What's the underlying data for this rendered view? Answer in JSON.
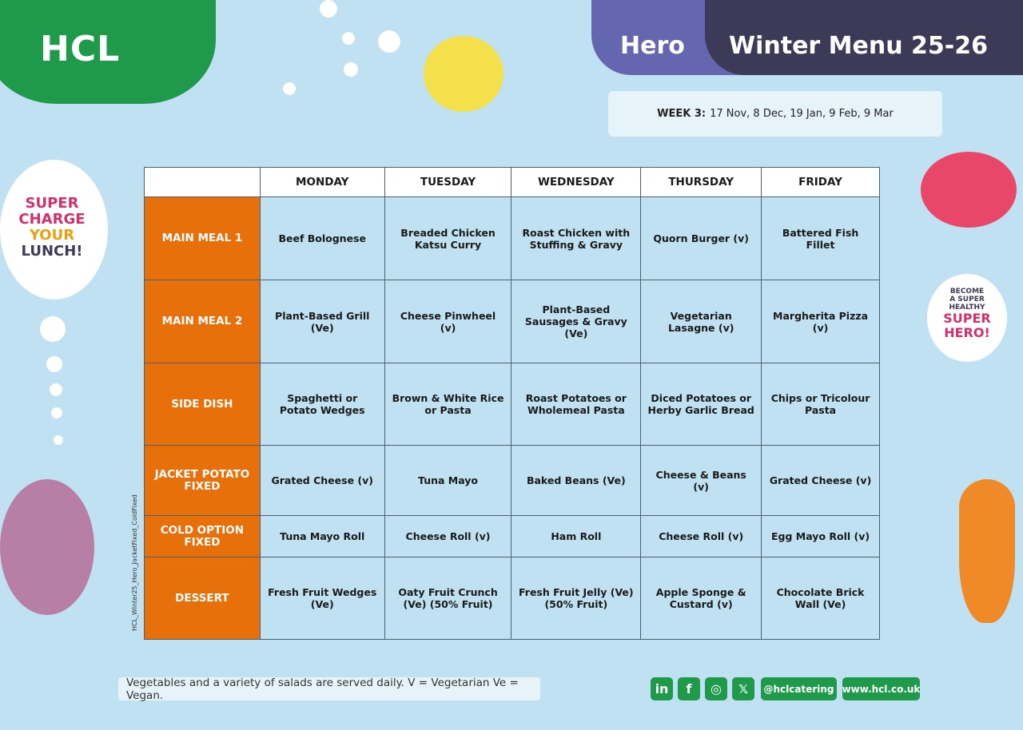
{
  "brand": {
    "logo": "HCL",
    "theme": "Hero",
    "title": "Winter Menu 25-26"
  },
  "week": {
    "label": "WEEK 3:",
    "dates": "17 Nov, 8 Dec, 19 Jan, 9 Feb, 9 Mar"
  },
  "left_cloud": [
    "SUPER",
    "CHARGE",
    "YOUR",
    "LUNCH!"
  ],
  "right_cloud": [
    "BECOME",
    "A SUPER",
    "HEALTHY",
    "SUPER",
    "HERO!"
  ],
  "doc_code": "HCL_Winter25_Hero_JacketFixed_ColdFixed",
  "menu": {
    "days": [
      "MONDAY",
      "TUESDAY",
      "WEDNESDAY",
      "THURSDAY",
      "FRIDAY"
    ],
    "rows": [
      {
        "label": "MAIN MEAL 1",
        "items": [
          "Beef Bolognese",
          "Breaded Chicken Katsu Curry",
          "Roast Chicken with Stuffing & Gravy",
          "Quorn Burger (v)",
          "Battered Fish Fillet"
        ]
      },
      {
        "label": "MAIN MEAL 2",
        "items": [
          "Plant-Based Grill (Ve)",
          "Cheese Pinwheel (v)",
          "Plant-Based Sausages & Gravy (Ve)",
          "Vegetarian Lasagne (v)",
          "Margherita Pizza (v)"
        ]
      },
      {
        "label": "SIDE DISH",
        "items": [
          "Spaghetti or Potato Wedges",
          "Brown & White Rice or Pasta",
          "Roast Potatoes or Wholemeal Pasta",
          "Diced Potatoes or Herby Garlic Bread",
          "Chips or Tricolour Pasta"
        ]
      },
      {
        "label": "JACKET POTATO FIXED",
        "items": [
          "Grated Cheese (v)",
          "Tuna Mayo",
          "Baked Beans (Ve)",
          "Cheese & Beans (v)",
          "Grated Cheese (v)"
        ]
      },
      {
        "label": "COLD OPTION FIXED",
        "items": [
          "Tuna Mayo Roll",
          "Cheese Roll (v)",
          "Ham Roll",
          "Cheese Roll (v)",
          "Egg Mayo Roll (v)"
        ]
      },
      {
        "label": "DESSERT",
        "items": [
          "Fresh Fruit Wedges (Ve)",
          "Oaty Fruit Crunch (Ve) (50% Fruit)",
          "Fresh Fruit Jelly (Ve) (50% Fruit)",
          "Apple Sponge & Custard (v)",
          "Chocolate Brick Wall (Ve)"
        ]
      }
    ]
  },
  "footer": {
    "note": "Vegetables and a variety of salads are served daily.  V = Vegetarian  Ve = Vegan.",
    "social_icons": [
      "linkedin-icon",
      "facebook-icon",
      "instagram-icon",
      "x-icon"
    ],
    "social": [
      "in",
      "f",
      "◎",
      "𝕏"
    ],
    "handle": "@hclcatering",
    "website": "www.hcl.co.uk"
  },
  "colors": {
    "background": "#bfe1f1",
    "orange": "#e8700a",
    "green": "#1e9a4a",
    "purple": "#6466b0",
    "dark": "#3d3a58"
  }
}
